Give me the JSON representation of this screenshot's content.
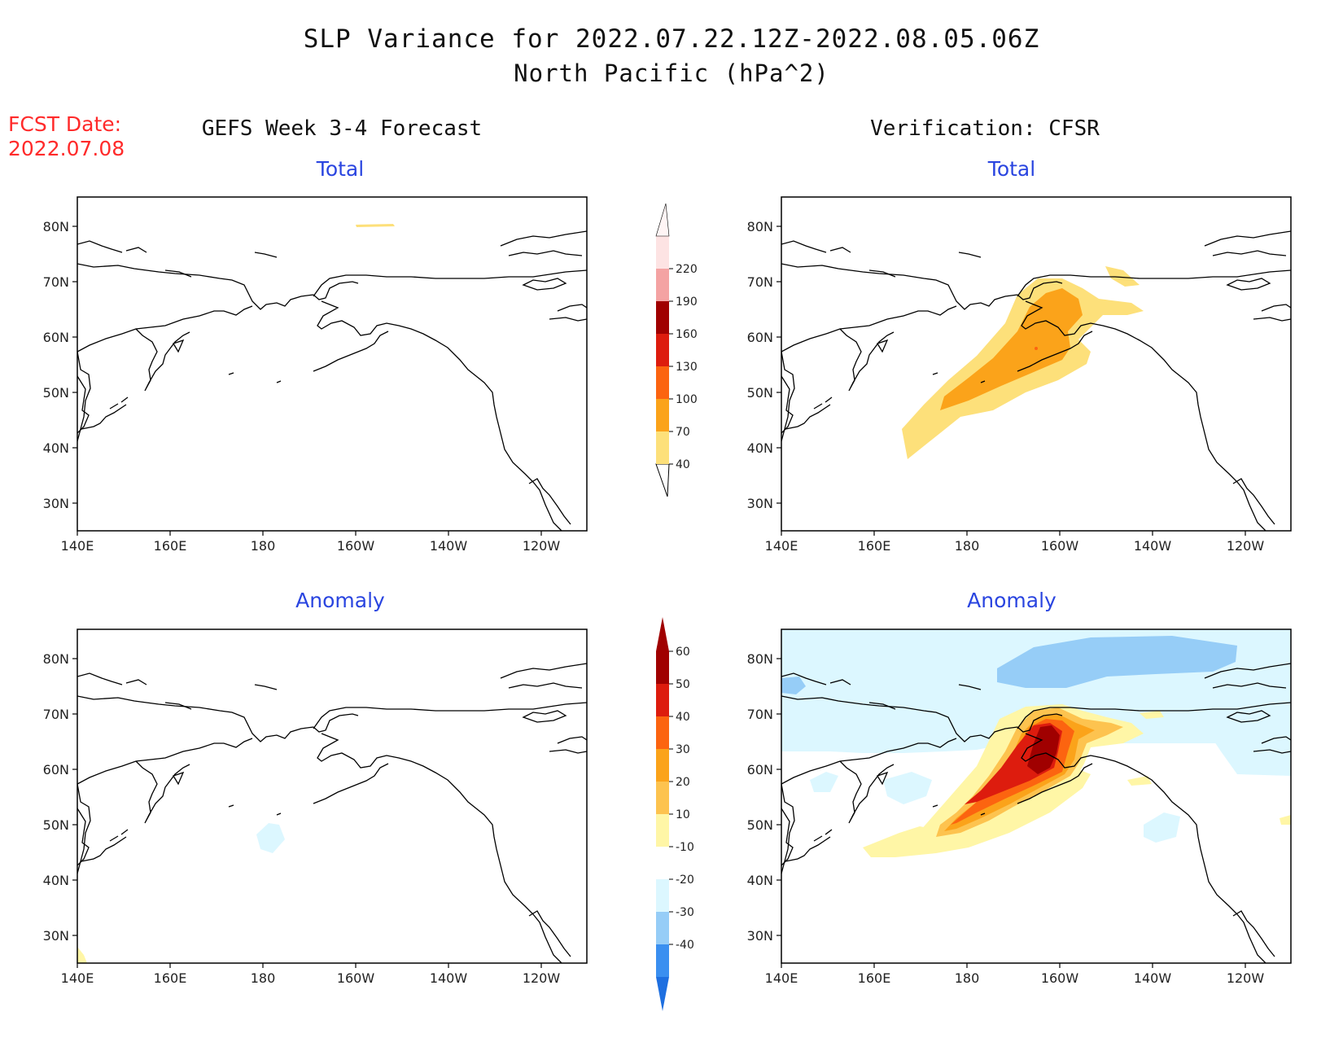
{
  "header": {
    "title_line1": "SLP Variance for 2022.07.22.12Z-2022.08.05.06Z",
    "title_line2": "North Pacific (hPa^2)",
    "fcst_label": "FCST Date:",
    "fcst_date": "2022.07.08",
    "left_heading": "GEFS Week 3-4 Forecast",
    "right_heading": "Verification: CFSR"
  },
  "panels": {
    "top_left_label": "Total",
    "top_right_label": "Total",
    "bottom_left_label": "Anomaly",
    "bottom_right_label": "Anomaly"
  },
  "axes": {
    "x_ticks": [
      "140E",
      "160E",
      "180",
      "160W",
      "140W",
      "120W"
    ],
    "y_ticks": [
      "80N",
      "70N",
      "60N",
      "50N",
      "40N",
      "30N"
    ]
  },
  "colorbars": {
    "total": {
      "labels": [
        "40",
        "70",
        "100",
        "130",
        "160",
        "190",
        "220"
      ],
      "colors": [
        "#fde07a",
        "#fba31a",
        "#fc6410",
        "#dd1c0e",
        "#a00000",
        "#f4a3a3",
        "#fde3e3"
      ]
    },
    "anomaly": {
      "labels": [
        "-40",
        "-30",
        "-20",
        "-10",
        "10",
        "20",
        "30",
        "40",
        "50",
        "60"
      ],
      "colors": [
        "#1e6fe0",
        "#3a8ff0",
        "#96cdf7",
        "#dcf7ff",
        "#ffffff",
        "#fff6a6",
        "#fdc34f",
        "#fba31a",
        "#fc6410",
        "#dd1c0e",
        "#a00000"
      ]
    }
  },
  "colors": {
    "label_blue": "#2a45e0",
    "fcst_red": "#ff2a2a"
  }
}
